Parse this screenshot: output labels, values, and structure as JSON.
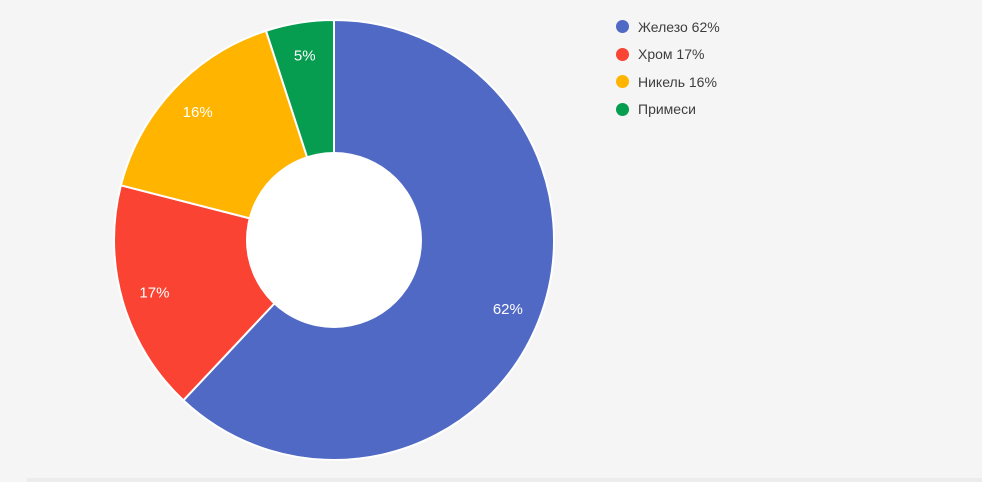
{
  "background_color": "#f5f5f6",
  "chart_data": {
    "type": "pie",
    "donut": true,
    "hole_ratio": 0.4,
    "hole_color": "#ffffff",
    "start_angle_deg": 0,
    "direction": "clockwise",
    "title": "",
    "categories": [
      "Железо",
      "Хром",
      "Никель",
      "Примеси"
    ],
    "values": [
      62,
      17,
      16,
      5
    ],
    "unit": "%",
    "colors": [
      "#5069c4",
      "#fa4332",
      "#ffb400",
      "#069d50"
    ],
    "slice_labels": [
      "62%",
      "17%",
      "16%",
      "5%"
    ],
    "slice_label_color": "#ffffff",
    "slice_border_color": "#ffffff",
    "legend": {
      "position": "top-right",
      "text_color": "#3e3e3e",
      "entries": [
        {
          "label": "Железо 62%",
          "color": "#5069c4"
        },
        {
          "label": "Хром 17%",
          "color": "#fa4332"
        },
        {
          "label": "Никель 16%",
          "color": "#ffb400"
        },
        {
          "label": "Примеси",
          "color": "#069d50"
        }
      ]
    }
  }
}
